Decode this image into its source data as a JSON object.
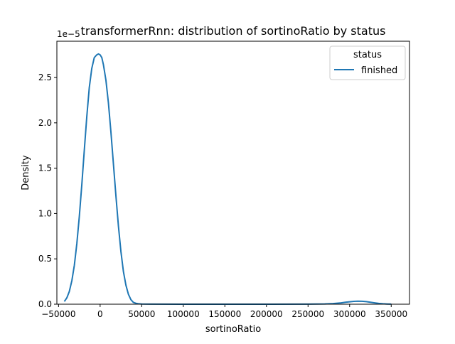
{
  "chart_data": {
    "type": "line",
    "title": "transformerRnn: distribution of sortinoRatio by status",
    "xlabel": "sortinoRatio",
    "ylabel": "Density",
    "y_offset_label": "1e−5",
    "xlim": [
      -52000,
      372000
    ],
    "ylim": [
      0,
      2.9
    ],
    "xticks": [
      -50000,
      0,
      50000,
      100000,
      150000,
      200000,
      250000,
      300000,
      350000
    ],
    "xtick_labels": [
      "−50000",
      "0",
      "50000",
      "100000",
      "150000",
      "200000",
      "250000",
      "300000",
      "350000"
    ],
    "yticks": [
      0.0,
      0.5,
      1.0,
      1.5,
      2.0,
      2.5
    ],
    "ytick_labels": [
      "0.0",
      "0.5",
      "1.0",
      "1.5",
      "2.0",
      "2.5"
    ],
    "grid": false,
    "legend": {
      "title": "status",
      "position": "top-right"
    },
    "series": [
      {
        "name": "finished",
        "color": "#1f77b4",
        "x": [
          -43000,
          -40000,
          -37000,
          -34000,
          -31000,
          -28000,
          -25000,
          -22000,
          -19000,
          -16000,
          -13000,
          -10000,
          -7000,
          -4000,
          -2000,
          0,
          2000,
          4000,
          7000,
          10000,
          13000,
          16000,
          19000,
          22000,
          25000,
          28000,
          31000,
          34000,
          37000,
          40000,
          43000,
          46000,
          50000,
          60000,
          100000,
          150000,
          200000,
          250000,
          270000,
          280000,
          290000,
          295000,
          300000,
          305000,
          310000,
          315000,
          320000,
          325000,
          330000,
          335000,
          340000,
          345000,
          350000
        ],
        "y": [
          0.03,
          0.07,
          0.14,
          0.26,
          0.43,
          0.67,
          0.97,
          1.32,
          1.7,
          2.07,
          2.39,
          2.6,
          2.72,
          2.75,
          2.76,
          2.75,
          2.72,
          2.64,
          2.47,
          2.22,
          1.9,
          1.55,
          1.19,
          0.86,
          0.58,
          0.36,
          0.21,
          0.11,
          0.05,
          0.02,
          0.01,
          0.005,
          0.002,
          0.0005,
          0.0,
          0.0,
          0.0,
          0.001,
          0.003,
          0.007,
          0.015,
          0.021,
          0.027,
          0.031,
          0.033,
          0.032,
          0.028,
          0.022,
          0.015,
          0.009,
          0.005,
          0.002,
          0.001
        ]
      }
    ]
  }
}
